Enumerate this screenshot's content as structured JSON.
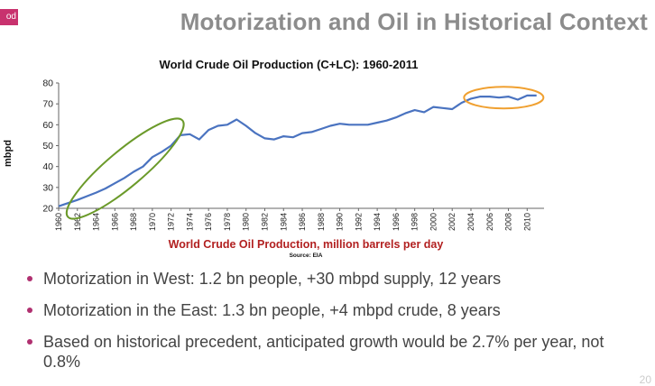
{
  "header": {
    "logo_text": "od",
    "title": "Motorization and Oil in Historical Context"
  },
  "chart_data": {
    "type": "line",
    "title": "World Crude Oil Production (C+LC): 1960-2011",
    "xlabel": "World Crude Oil Production, million barrels per day",
    "ylabel": "mbpd",
    "source": "Source: EIA",
    "ylim": [
      20,
      80
    ],
    "yticks": [
      "20",
      "30",
      "40",
      "50",
      "60",
      "70",
      "80"
    ],
    "xticks": [
      "1960",
      "1962",
      "1964",
      "1966",
      "1968",
      "1970",
      "1972",
      "1974",
      "1976",
      "1978",
      "1980",
      "1982",
      "1984",
      "1986",
      "1988",
      "1990",
      "1992",
      "1994",
      "1996",
      "1998",
      "2000",
      "2002",
      "2004",
      "2006",
      "2008",
      "2010"
    ],
    "grid": false,
    "series": [
      {
        "color": "#4a73c0",
        "x": [
          1960,
          1961,
          1962,
          1963,
          1964,
          1965,
          1966,
          1967,
          1968,
          1969,
          1970,
          1971,
          1972,
          1973,
          1974,
          1975,
          1976,
          1977,
          1978,
          1979,
          1980,
          1981,
          1982,
          1983,
          1984,
          1985,
          1986,
          1987,
          1988,
          1989,
          1990,
          1991,
          1992,
          1993,
          1994,
          1995,
          1996,
          1997,
          1998,
          1999,
          2000,
          2001,
          2002,
          2003,
          2004,
          2005,
          2006,
          2007,
          2008,
          2009,
          2010,
          2011
        ],
        "values": [
          21,
          22.5,
          24,
          25.8,
          27.5,
          29.5,
          32,
          34.5,
          37.5,
          40,
          44.5,
          47,
          50,
          55,
          55.5,
          53,
          57.5,
          59.5,
          60,
          62.5,
          59.5,
          56,
          53.5,
          53,
          54.5,
          54,
          56,
          56.5,
          58,
          59.5,
          60.5,
          60,
          60,
          60,
          61,
          62,
          63.5,
          65.5,
          67,
          66,
          68.5,
          68,
          67.5,
          70.5,
          72.5,
          73.5,
          73.5,
          73,
          73.5,
          72,
          74,
          74
        ]
      }
    ],
    "annotations": [
      {
        "shape": "ellipse",
        "color": "#6b9a2a",
        "note": "green ellipse around 1960-1973 growth"
      },
      {
        "shape": "ellipse",
        "color": "#f0a030",
        "note": "orange ellipse around 2004-2011 plateau"
      }
    ]
  },
  "bullets": [
    "Motorization in West: 1.2 bn people, +30 mbpd supply, 12 years",
    "Motorization in the East: 1.3 bn people, +4 mbpd crude, 8 years",
    "Based on historical precedent, anticipated growth would be 2.7% per year, not 0.8%"
  ],
  "page_number": "20"
}
